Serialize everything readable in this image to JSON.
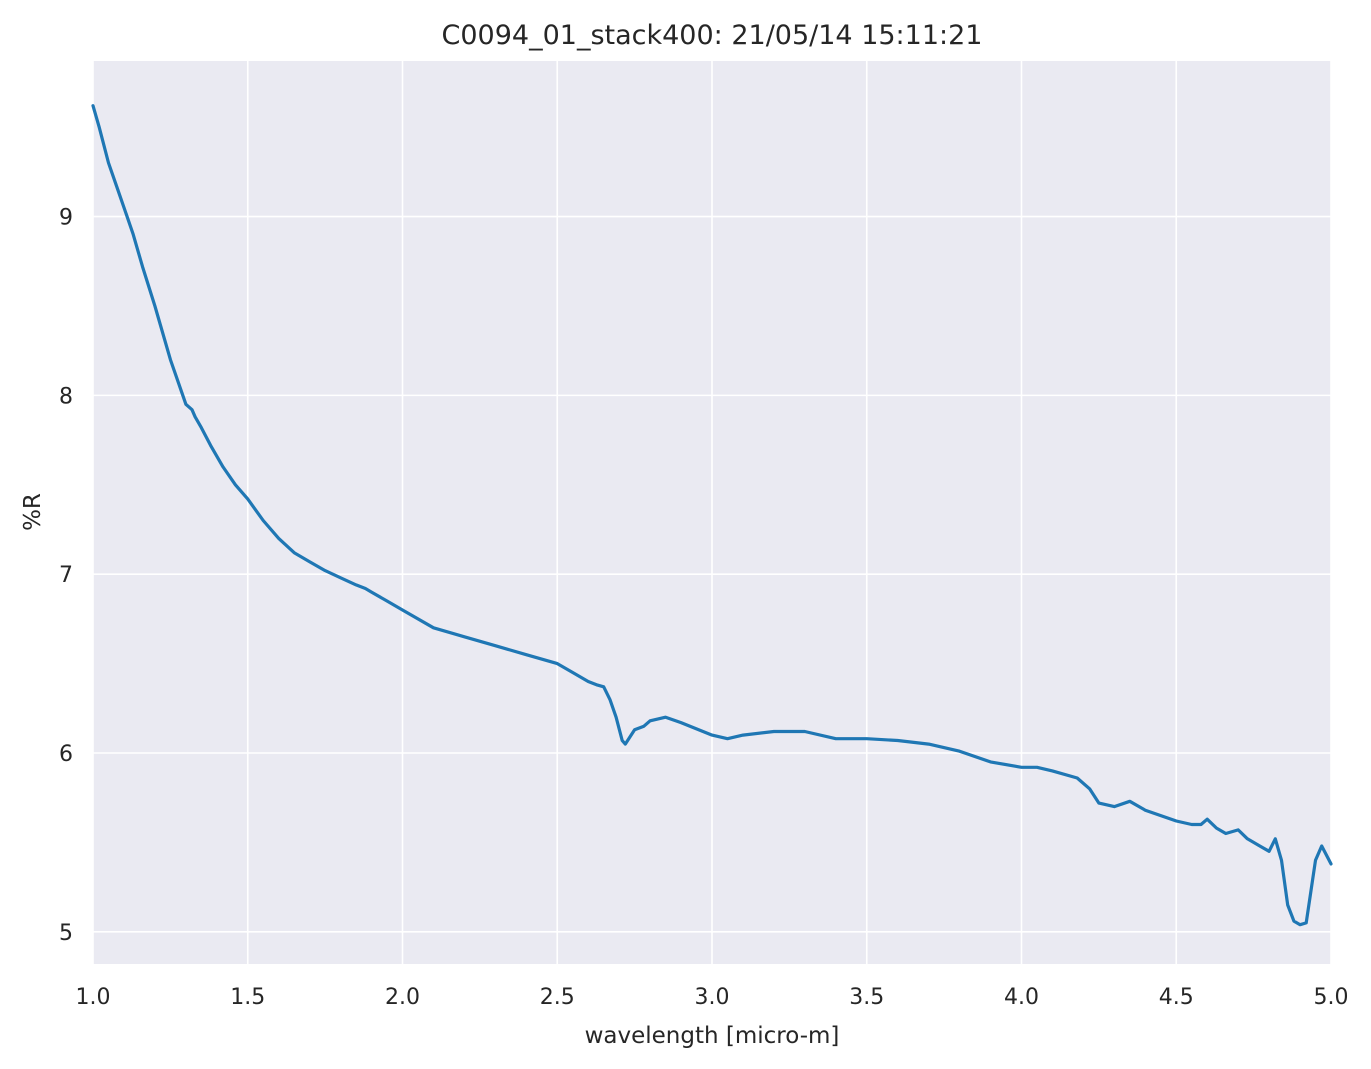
{
  "chart_data": {
    "type": "line",
    "title": "C0094_01_stack400:  21/05/14 15:11:21",
    "xlabel": "wavelength [micro-m]",
    "ylabel": "%R",
    "xlim": [
      1.0,
      5.0
    ],
    "ylim": [
      4.82,
      9.87
    ],
    "xticks": [
      "1.0",
      "1.5",
      "2.0",
      "2.5",
      "3.0",
      "3.5",
      "4.0",
      "4.5",
      "5.0"
    ],
    "yticks": [
      "5",
      "6",
      "7",
      "8",
      "9"
    ],
    "grid": true,
    "background": "#eaeaf2",
    "grid_color": "#ffffff",
    "series": [
      {
        "color": "#1f77b4",
        "x": [
          1.0,
          1.02,
          1.05,
          1.08,
          1.1,
          1.13,
          1.16,
          1.2,
          1.25,
          1.3,
          1.32,
          1.33,
          1.35,
          1.38,
          1.42,
          1.46,
          1.5,
          1.55,
          1.6,
          1.65,
          1.7,
          1.75,
          1.8,
          1.85,
          1.88,
          1.9,
          1.95,
          2.0,
          2.1,
          2.2,
          2.3,
          2.4,
          2.5,
          2.55,
          2.6,
          2.63,
          2.65,
          2.67,
          2.69,
          2.71,
          2.72,
          2.75,
          2.78,
          2.8,
          2.85,
          2.9,
          3.0,
          3.05,
          3.1,
          3.2,
          3.3,
          3.4,
          3.5,
          3.6,
          3.7,
          3.8,
          3.9,
          4.0,
          4.05,
          4.1,
          4.18,
          4.22,
          4.25,
          4.3,
          4.35,
          4.4,
          4.45,
          4.5,
          4.55,
          4.58,
          4.6,
          4.63,
          4.66,
          4.7,
          4.73,
          4.77,
          4.8,
          4.82,
          4.84,
          4.86,
          4.88,
          4.9,
          4.92,
          4.95,
          4.97,
          5.0
        ],
        "y": [
          9.62,
          9.5,
          9.3,
          9.15,
          9.05,
          8.9,
          8.72,
          8.5,
          8.2,
          7.95,
          7.92,
          7.88,
          7.82,
          7.72,
          7.6,
          7.5,
          7.42,
          7.3,
          7.2,
          7.12,
          7.07,
          7.02,
          6.98,
          6.94,
          6.92,
          6.9,
          6.85,
          6.8,
          6.7,
          6.65,
          6.6,
          6.55,
          6.5,
          6.45,
          6.4,
          6.38,
          6.37,
          6.3,
          6.2,
          6.07,
          6.05,
          6.13,
          6.15,
          6.18,
          6.2,
          6.17,
          6.1,
          6.08,
          6.1,
          6.12,
          6.12,
          6.08,
          6.08,
          6.07,
          6.05,
          6.01,
          5.95,
          5.92,
          5.92,
          5.9,
          5.86,
          5.8,
          5.72,
          5.7,
          5.73,
          5.68,
          5.65,
          5.62,
          5.6,
          5.6,
          5.63,
          5.58,
          5.55,
          5.57,
          5.52,
          5.48,
          5.45,
          5.52,
          5.4,
          5.15,
          5.06,
          5.04,
          5.05,
          5.4,
          5.48,
          5.38
        ]
      }
    ]
  }
}
